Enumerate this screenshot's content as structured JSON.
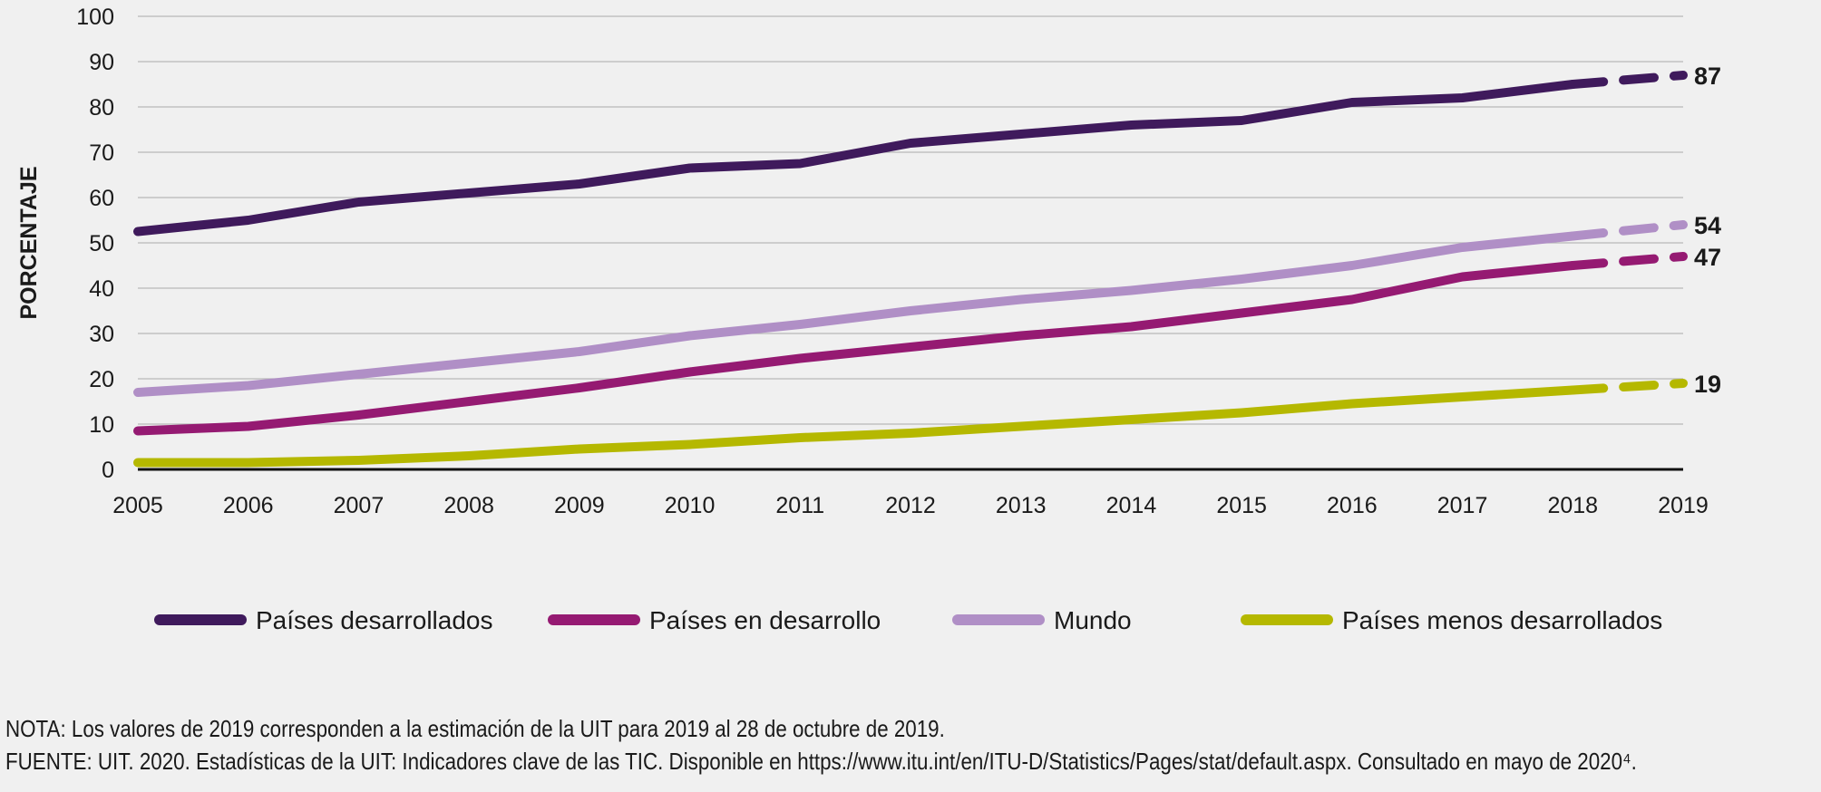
{
  "chart_data": {
    "type": "line",
    "title": "",
    "xlabel": "",
    "ylabel": "PORCENTAJE",
    "x": [
      2005,
      2006,
      2007,
      2008,
      2009,
      2010,
      2011,
      2012,
      2013,
      2014,
      2015,
      2016,
      2017,
      2018,
      2019
    ],
    "xticks": [
      "2005",
      "2006",
      "2007",
      "2008",
      "2009",
      "2010",
      "2011",
      "2012",
      "2013",
      "2014",
      "2015",
      "2016",
      "2017",
      "2018",
      "2019"
    ],
    "ylim": [
      0,
      100
    ],
    "yticks": [
      "0",
      "10",
      "20",
      "30",
      "40",
      "50",
      "60",
      "70",
      "80",
      "90",
      "100"
    ],
    "ytick_values": [
      0,
      10,
      20,
      30,
      40,
      50,
      60,
      70,
      80,
      90,
      100
    ],
    "grid": true,
    "legend_position": "bottom",
    "estimated_from": 2018,
    "series": [
      {
        "name": "Países desarrollados",
        "color": "#3f1a5c",
        "values": [
          52.5,
          55,
          59,
          61,
          63,
          66.5,
          67.5,
          72,
          74,
          76,
          77,
          81,
          82,
          85,
          87
        ],
        "end_label": "87"
      },
      {
        "name": "Países en desarrollo",
        "color": "#951a72",
        "values": [
          8.5,
          9.5,
          12,
          15,
          18,
          21.5,
          24.5,
          27,
          29.5,
          31.5,
          34.5,
          37.5,
          42.5,
          45,
          47
        ],
        "end_label": "47"
      },
      {
        "name": "Mundo",
        "color": "#b08fc6",
        "values": [
          17,
          18.5,
          21,
          23.5,
          26,
          29.5,
          32,
          35,
          37.5,
          39.5,
          42,
          45,
          49,
          51.5,
          54
        ],
        "end_label": "54"
      },
      {
        "name": "Países menos desarrollados",
        "color": "#b5b800",
        "values": [
          1.5,
          1.5,
          2,
          3,
          4.5,
          5.5,
          7,
          8,
          9.5,
          11,
          12.5,
          14.5,
          16,
          17.5,
          19
        ],
        "end_label": "19"
      }
    ]
  },
  "footer": {
    "note": "NOTA: Los valores de 2019 corresponden a la estimación de la UIT para 2019 al 28 de octubre de 2019.",
    "source": "FUENTE: UIT. 2020. Estadísticas de la UIT: Indicadores clave de las TIC. Disponible en https://www.itu.int/en/ITU-D/Statistics/Pages/stat/default.aspx. Consultado en mayo de 2020⁴."
  }
}
